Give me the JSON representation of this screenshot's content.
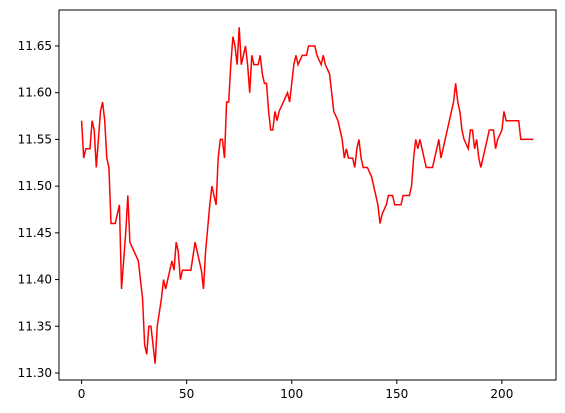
{
  "chart_data": {
    "type": "line",
    "color": "#ff0000",
    "x": [
      0,
      1,
      2,
      4,
      5,
      6,
      7,
      8,
      9,
      10,
      11,
      12,
      13,
      14,
      16,
      17,
      18,
      19,
      20,
      21,
      22,
      23,
      25,
      27,
      29,
      30,
      31,
      32,
      33,
      34,
      35,
      36,
      38,
      39,
      40,
      42,
      43,
      44,
      45,
      46,
      47,
      48,
      52,
      54,
      55,
      57,
      58,
      59,
      61,
      62,
      63,
      64,
      65,
      66,
      67,
      68,
      69,
      70,
      71,
      72,
      73,
      74,
      75,
      76,
      77,
      78,
      79,
      80,
      81,
      82,
      84,
      85,
      86,
      87,
      88,
      89,
      90,
      91,
      92,
      93,
      94,
      96,
      98,
      99,
      100,
      101,
      102,
      103,
      105,
      107,
      108,
      111,
      112,
      114,
      115,
      116,
      118,
      120,
      122,
      124,
      125,
      126,
      127,
      129,
      130,
      131,
      132,
      133,
      134,
      136,
      138,
      140,
      141,
      142,
      143,
      145,
      146,
      148,
      149,
      152,
      153,
      156,
      157,
      158,
      159,
      160,
      161,
      162,
      164,
      167,
      168,
      169,
      170,
      171,
      173,
      175,
      177,
      178,
      179,
      180,
      181,
      182,
      184,
      185,
      186,
      187,
      188,
      189,
      190,
      191,
      193,
      194,
      196,
      197,
      198,
      200,
      201,
      202,
      208,
      209,
      215
    ],
    "values": [
      11.57,
      11.53,
      11.54,
      11.54,
      11.57,
      11.56,
      11.52,
      11.55,
      11.58,
      11.59,
      11.57,
      11.53,
      11.52,
      11.46,
      11.46,
      11.47,
      11.48,
      11.39,
      11.42,
      11.45,
      11.49,
      11.44,
      11.43,
      11.42,
      11.38,
      11.33,
      11.32,
      11.35,
      11.35,
      11.33,
      11.31,
      11.35,
      11.38,
      11.4,
      11.39,
      11.41,
      11.42,
      11.41,
      11.44,
      11.43,
      11.4,
      11.41,
      11.41,
      11.44,
      11.43,
      11.41,
      11.39,
      11.43,
      11.48,
      11.5,
      11.49,
      11.48,
      11.53,
      11.55,
      11.55,
      11.53,
      11.59,
      11.59,
      11.63,
      11.66,
      11.65,
      11.63,
      11.67,
      11.63,
      11.64,
      11.65,
      11.63,
      11.6,
      11.64,
      11.63,
      11.63,
      11.64,
      11.62,
      11.61,
      11.61,
      11.58,
      11.56,
      11.56,
      11.58,
      11.57,
      11.58,
      11.59,
      11.6,
      11.59,
      11.61,
      11.63,
      11.64,
      11.63,
      11.64,
      11.64,
      11.65,
      11.65,
      11.64,
      11.63,
      11.64,
      11.63,
      11.62,
      11.58,
      11.57,
      11.55,
      11.53,
      11.54,
      11.53,
      11.53,
      11.52,
      11.54,
      11.55,
      11.53,
      11.52,
      11.52,
      11.51,
      11.49,
      11.48,
      11.46,
      11.47,
      11.48,
      11.49,
      11.49,
      11.48,
      11.48,
      11.49,
      11.49,
      11.5,
      11.53,
      11.55,
      11.54,
      11.55,
      11.54,
      11.52,
      11.52,
      11.53,
      11.54,
      11.55,
      11.53,
      11.55,
      11.57,
      11.59,
      11.61,
      11.59,
      11.58,
      11.56,
      11.55,
      11.54,
      11.56,
      11.56,
      11.54,
      11.55,
      11.53,
      11.52,
      11.53,
      11.55,
      11.56,
      11.56,
      11.54,
      11.55,
      11.56,
      11.58,
      11.57,
      11.57,
      11.55,
      11.55
    ],
    "xlim": [
      -10.75,
      225.75
    ],
    "xticks": [
      0,
      50,
      100,
      150,
      200
    ],
    "ylim": [
      11.2925,
      11.6885
    ],
    "yticks": [
      {
        "value": 11.3,
        "label": "11.30"
      },
      11.35,
      {
        "value": 11.4,
        "label": "11.40"
      },
      11.45,
      {
        "value": 11.5,
        "label": "11.50"
      },
      11.55,
      {
        "value": 11.6,
        "label": "11.60"
      },
      11.65
    ]
  }
}
